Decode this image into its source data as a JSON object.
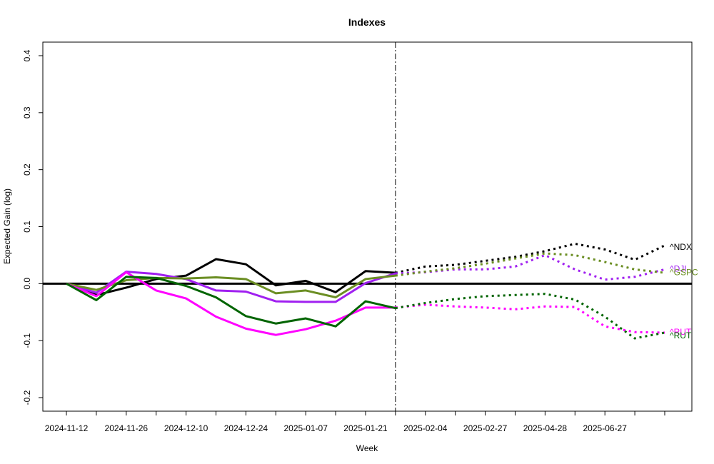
{
  "chart_data": {
    "type": "line",
    "title": "Indexes",
    "xlabel": "Week",
    "ylabel": "Expected Gain (log)",
    "ylim": [
      -0.22,
      0.42
    ],
    "yticks": [
      -0.2,
      -0.1,
      0.0,
      0.1,
      0.2,
      0.3,
      0.4
    ],
    "ytick_labels": [
      "-0.2",
      "-0.1",
      "0.0",
      "0.1",
      "0.2",
      "0.3",
      "0.4"
    ],
    "x_tick_labels": [
      "2024-11-12",
      "2024-11-26",
      "2024-12-10",
      "2024-12-24",
      "2025-01-07",
      "2025-01-21",
      "2025-02-04",
      "2025-02-27",
      "2025-04-28",
      "2025-06-27"
    ],
    "split_index": 11,
    "zero_line": true,
    "grid": false,
    "series": [
      {
        "name": "^NDX",
        "color": "#000000",
        "label_y": 0.064,
        "values": [
          0.0,
          -0.02,
          -0.007,
          0.008,
          0.014,
          0.043,
          0.034,
          -0.003,
          0.005,
          -0.015,
          0.022,
          0.019,
          0.03,
          0.033,
          0.04,
          0.047,
          0.057,
          0.07,
          0.06,
          0.042,
          0.067
        ]
      },
      {
        "name": "^DJI",
        "color": "#a020f0",
        "label_y": 0.026,
        "values": [
          0.0,
          -0.016,
          0.021,
          0.017,
          0.008,
          -0.012,
          -0.014,
          -0.031,
          -0.032,
          -0.032,
          0.001,
          0.018,
          0.02,
          0.025,
          0.025,
          0.03,
          0.05,
          0.025,
          0.007,
          0.012,
          0.025
        ]
      },
      {
        "name": "^GSPC",
        "color": "#6b8e23",
        "label_y": 0.02,
        "values": [
          0.0,
          -0.011,
          0.006,
          0.01,
          0.009,
          0.011,
          0.008,
          -0.017,
          -0.012,
          -0.024,
          0.008,
          0.014,
          0.021,
          0.027,
          0.035,
          0.044,
          0.053,
          0.05,
          0.038,
          0.025,
          0.019
        ]
      },
      {
        "name": "^RUT",
        "color": "#ff00ff",
        "label_y": -0.085,
        "values": [
          0.0,
          -0.022,
          0.02,
          -0.012,
          -0.026,
          -0.058,
          -0.079,
          -0.09,
          -0.08,
          -0.065,
          -0.042,
          -0.042,
          -0.037,
          -0.04,
          -0.042,
          -0.045,
          -0.04,
          -0.041,
          -0.075,
          -0.085,
          -0.086
        ]
      },
      {
        "name": "^RUT",
        "color": "#006400",
        "label_y": -0.091,
        "values": [
          0.0,
          -0.029,
          0.012,
          0.01,
          -0.004,
          -0.024,
          -0.057,
          -0.07,
          -0.061,
          -0.075,
          -0.031,
          -0.043,
          -0.034,
          -0.027,
          -0.022,
          -0.02,
          -0.018,
          -0.028,
          -0.058,
          -0.096,
          -0.086
        ]
      }
    ]
  }
}
